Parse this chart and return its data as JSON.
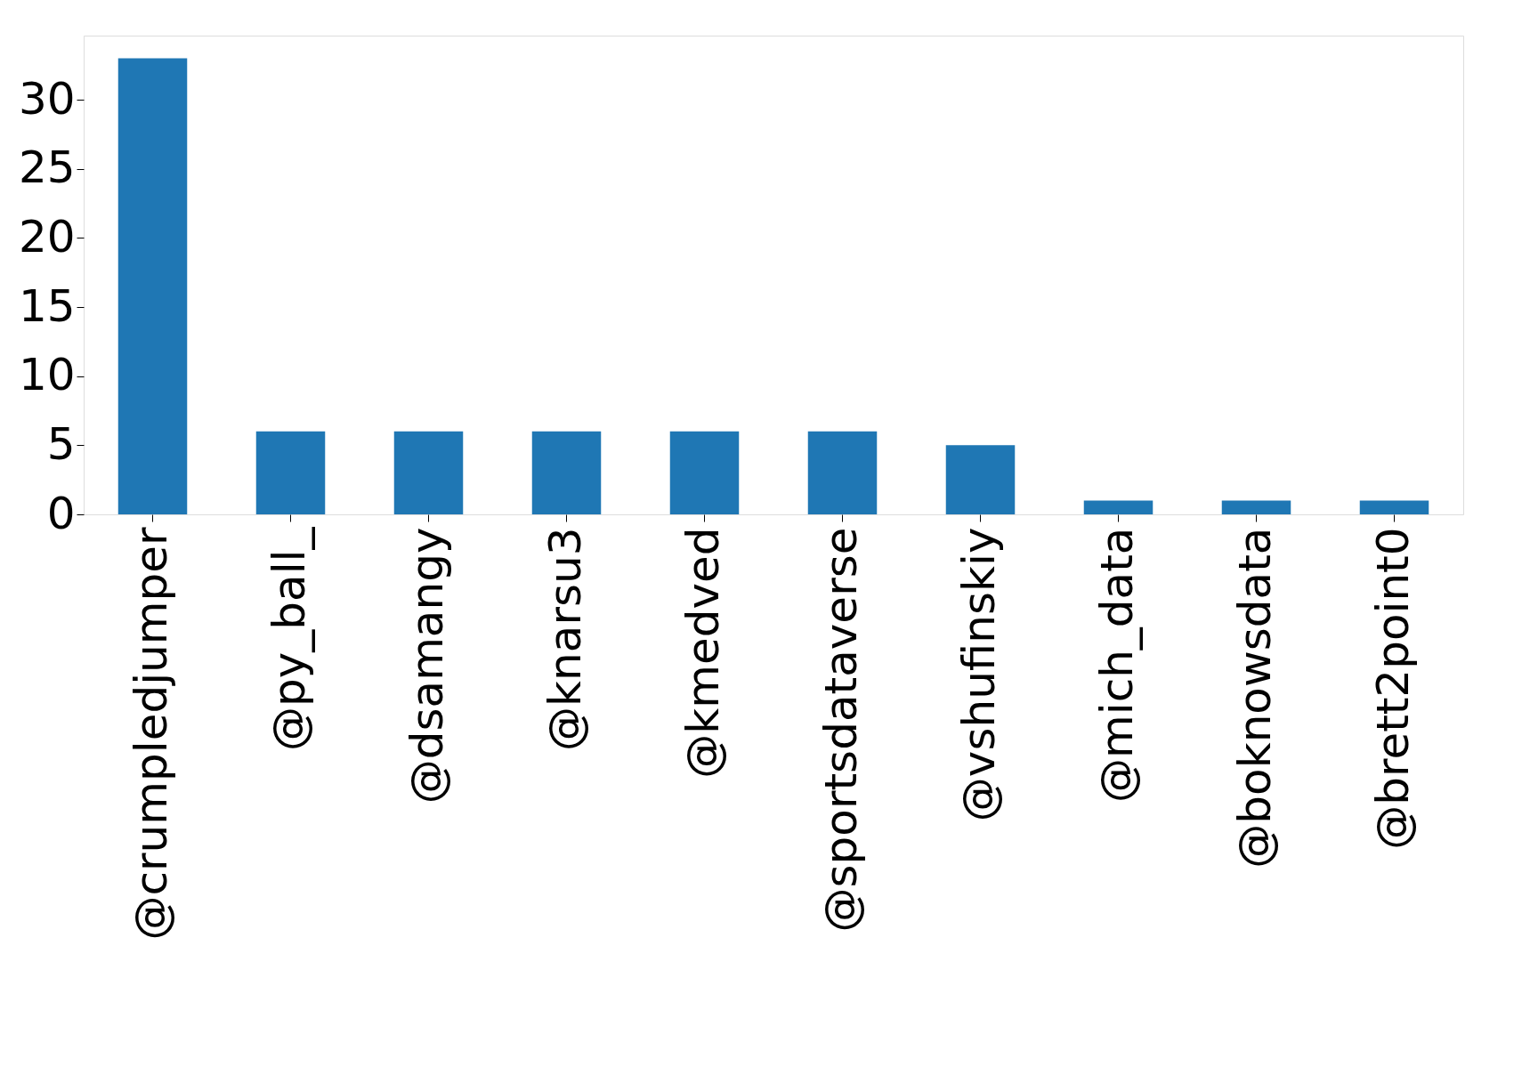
{
  "chart_data": {
    "type": "bar",
    "categories": [
      "@crumpledjumper",
      "@py_ball_",
      "@dsamangy",
      "@knarsu3",
      "@kmedved",
      "@sportsdataverse",
      "@vshufinskiy",
      "@mich_data",
      "@boknowsdata",
      "@brett2point0"
    ],
    "values": [
      33,
      6,
      6,
      6,
      6,
      6,
      5,
      1,
      1,
      1
    ],
    "color": "#1f77b4",
    "ylim": [
      0,
      34.65
    ],
    "yticks": [
      0,
      5,
      10,
      15,
      20,
      25,
      30
    ],
    "grid": false
  }
}
